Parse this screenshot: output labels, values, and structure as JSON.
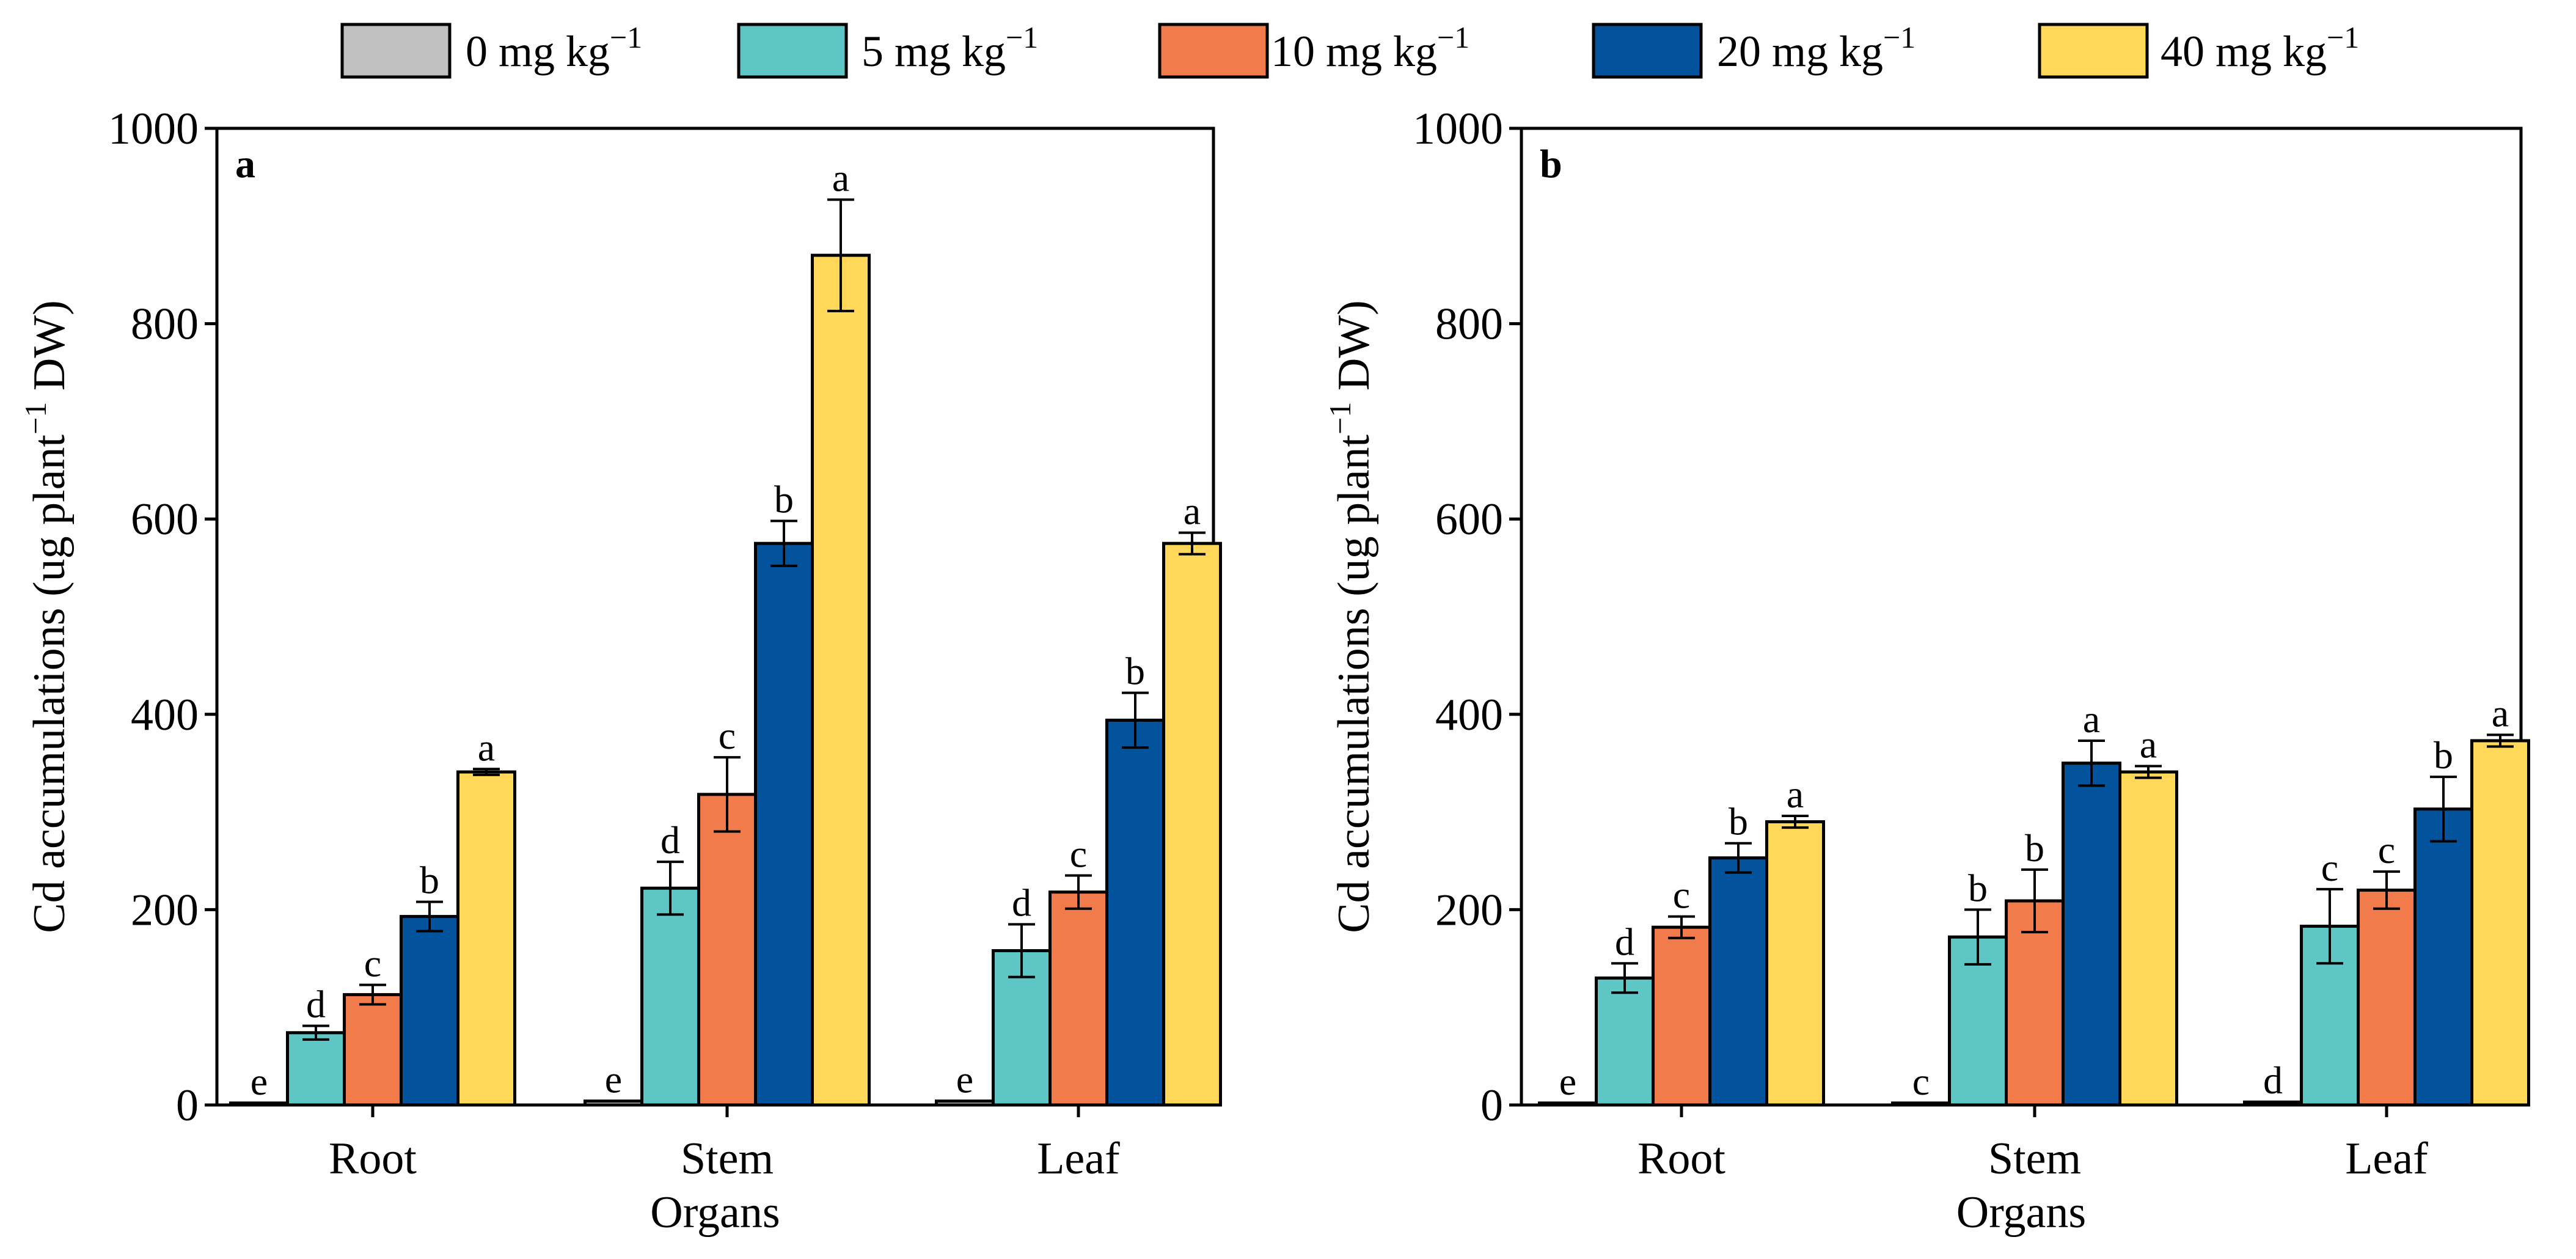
{
  "legend": {
    "entries": [
      {
        "name": "0 mg kg",
        "exp": "−1",
        "color": "#C0C0C0"
      },
      {
        "name": "5 mg kg",
        "exp": "−1",
        "color": "#5FC6C6"
      },
      {
        "name": "10 mg kg",
        "exp": "−1",
        "color": "#F27B4C"
      },
      {
        "name": "20 mg kg",
        "exp": "−1",
        "color": "#03539C"
      },
      {
        "name": "40 mg kg",
        "exp": "−1",
        "color": "#FFD85A"
      }
    ]
  },
  "chart_data": [
    {
      "type": "bar",
      "panel": "a",
      "title": "",
      "xlabel": "Organs",
      "ylabel": {
        "pre": "Cd accumulations (ug plant",
        "sup": "−1",
        "post": " DW)"
      },
      "ylim": [
        0,
        1000
      ],
      "yticks": [
        0,
        200,
        400,
        600,
        800,
        1000
      ],
      "categories": [
        "Root",
        "Stem",
        "Leaf"
      ],
      "series": [
        {
          "name": "0 mg kg−1",
          "values": [
            2,
            4,
            4
          ],
          "errors": [
            0,
            0,
            0
          ],
          "labels": [
            "e",
            "e",
            "e"
          ]
        },
        {
          "name": "5 mg kg−1",
          "values": [
            74,
            222,
            158
          ],
          "errors": [
            7,
            27,
            27
          ],
          "labels": [
            "d",
            "d",
            "d"
          ]
        },
        {
          "name": "10 mg kg−1",
          "values": [
            113,
            318,
            218
          ],
          "errors": [
            10,
            38,
            17
          ],
          "labels": [
            "c",
            "c",
            "c"
          ]
        },
        {
          "name": "20 mg kg−1",
          "values": [
            193,
            575,
            394
          ],
          "errors": [
            15,
            23,
            28
          ],
          "labels": [
            "b",
            "b",
            "b"
          ]
        },
        {
          "name": "40 mg kg−1",
          "values": [
            341,
            870,
            575
          ],
          "errors": [
            3,
            57,
            11
          ],
          "labels": [
            "a",
            "a",
            "a"
          ]
        }
      ]
    },
    {
      "type": "bar",
      "panel": "b",
      "title": "",
      "xlabel": "Organs",
      "ylabel": {
        "pre": "Cd accumulations (ug plant",
        "sup": "−1",
        "post": " DW)"
      },
      "ylim": [
        0,
        1000
      ],
      "yticks": [
        0,
        200,
        400,
        600,
        800,
        1000
      ],
      "categories": [
        "Root",
        "Stem",
        "Leaf"
      ],
      "series": [
        {
          "name": "0 mg kg−1",
          "values": [
            2,
            2,
            3
          ],
          "errors": [
            0,
            0,
            0
          ],
          "labels": [
            "e",
            "c",
            "d"
          ]
        },
        {
          "name": "5 mg kg−1",
          "values": [
            130,
            172,
            183
          ],
          "errors": [
            15,
            28,
            38
          ],
          "labels": [
            "d",
            "b",
            "c"
          ]
        },
        {
          "name": "10 mg kg−1",
          "values": [
            182,
            209,
            220
          ],
          "errors": [
            11,
            32,
            19
          ],
          "labels": [
            "c",
            "b",
            "c"
          ]
        },
        {
          "name": "20 mg kg−1",
          "values": [
            253,
            350,
            303
          ],
          "errors": [
            15,
            23,
            33
          ],
          "labels": [
            "b",
            "a",
            "b"
          ]
        },
        {
          "name": "40 mg kg−1",
          "values": [
            290,
            341,
            373
          ],
          "errors": [
            6,
            6,
            6
          ],
          "labels": [
            "a",
            "a",
            "a"
          ]
        }
      ]
    }
  ]
}
